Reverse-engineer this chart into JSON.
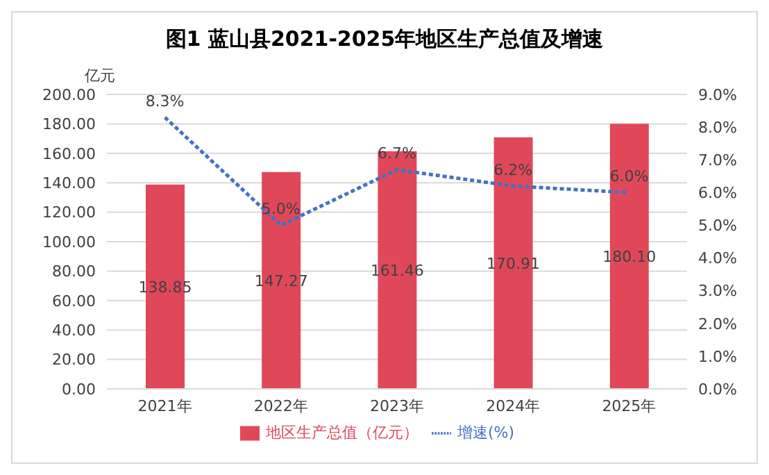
{
  "chart_data": {
    "type": "bar",
    "title": "图1  蓝山县2021-2025年地区生产总值及增速",
    "ylabel": "亿元",
    "categories": [
      "2021年",
      "2022年",
      "2023年",
      "2024年",
      "2025年"
    ],
    "series": [
      {
        "name": "地区生产总值（亿元）",
        "color": "#e0485a",
        "values": [
          138.85,
          147.27,
          161.46,
          170.91,
          180.1
        ],
        "value_labels": [
          "138.85",
          "147.27",
          "161.46",
          "170.91",
          "180.10"
        ]
      },
      {
        "name": "增速(%)",
        "type": "line",
        "axis": "y2",
        "color": "#4472c4",
        "line_style": "dotted",
        "marker": "none",
        "values": [
          8.3,
          5.0,
          6.7,
          6.2,
          6.0
        ],
        "value_labels": [
          "8.3%",
          "5.0%",
          "6.7%",
          "6.2%",
          "6.0%"
        ]
      }
    ],
    "ylim": [
      0,
      200
    ],
    "yticks": [
      {
        "value": 0,
        "label": "0.00"
      },
      {
        "value": 20,
        "label": "20.00"
      },
      {
        "value": 40,
        "label": "40.00"
      },
      {
        "value": 60,
        "label": "60.00"
      },
      {
        "value": 80,
        "label": "80.00"
      },
      {
        "value": 100,
        "label": "100.00"
      },
      {
        "value": 120,
        "label": "120.00"
      },
      {
        "value": 140,
        "label": "140.00"
      },
      {
        "value": 160,
        "label": "160.00"
      },
      {
        "value": 180,
        "label": "180.00"
      },
      {
        "value": 200,
        "label": "200.00"
      }
    ],
    "y2lim": [
      0,
      9
    ],
    "y2ticks": [
      {
        "value": 0,
        "label": "0.0%"
      },
      {
        "value": 1,
        "label": "1.0%"
      },
      {
        "value": 2,
        "label": "2.0%"
      },
      {
        "value": 3,
        "label": "3.0%"
      },
      {
        "value": 4,
        "label": "4.0%"
      },
      {
        "value": 5,
        "label": "5.0%"
      },
      {
        "value": 6,
        "label": "6.0%"
      },
      {
        "value": 7,
        "label": "7.0%"
      },
      {
        "value": 8,
        "label": "8.0%"
      },
      {
        "value": 9,
        "label": "9.0%"
      }
    ],
    "grid": "y",
    "legend": "bottom"
  }
}
